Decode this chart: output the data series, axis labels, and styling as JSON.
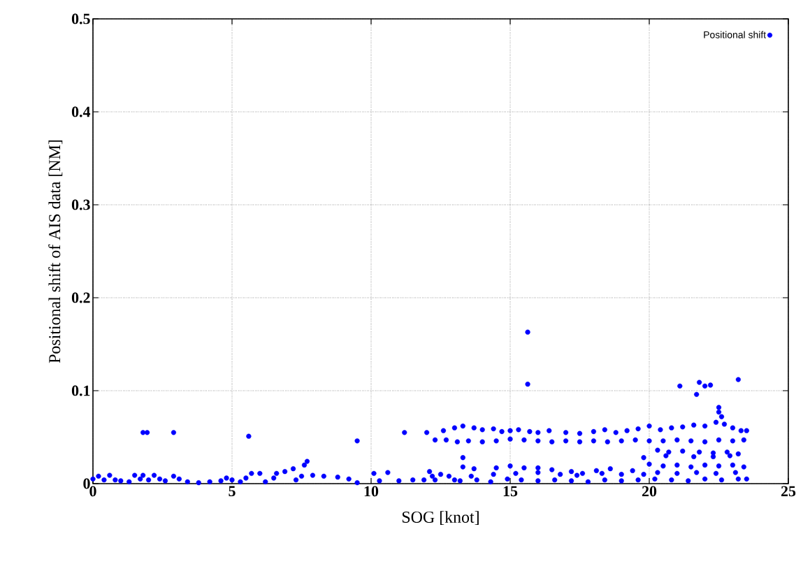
{
  "chart_data": {
    "type": "scatter",
    "xlabel": "SOG [knot]",
    "ylabel": "Positional shift of AIS data [NM]",
    "xlim": [
      0,
      25
    ],
    "ylim": [
      0,
      0.5
    ],
    "xticks": [
      0,
      5,
      10,
      15,
      20,
      25
    ],
    "yticks": [
      0,
      0.1,
      0.2,
      0.3,
      0.4,
      0.5
    ],
    "grid": true,
    "legend": "top right",
    "marker": "circle",
    "series": [
      {
        "name": "Positional shift",
        "color": "#0000ff",
        "x": [
          0.0,
          0.2,
          0.4,
          0.6,
          0.8,
          1.0,
          1.3,
          1.5,
          1.7,
          1.8,
          2.0,
          2.2,
          2.4,
          2.6,
          2.9,
          3.1,
          3.4,
          3.8,
          4.2,
          4.6,
          4.8,
          5.0,
          5.3,
          5.5,
          5.7,
          6.0,
          6.2,
          6.5,
          6.6,
          6.9,
          7.2,
          7.3,
          7.6,
          7.7,
          7.5,
          7.9,
          8.3,
          8.8,
          9.2,
          9.5,
          1.8,
          1.95,
          2.9,
          5.6,
          9.5,
          11.2,
          10.1,
          10.3,
          10.6,
          11.0,
          11.5,
          11.9,
          12.1,
          12.2,
          12.3,
          12.5,
          12.8,
          13.0,
          12.0,
          12.6,
          13.0,
          13.3,
          13.7,
          14.0,
          14.4,
          14.7,
          15.0,
          15.3,
          15.7,
          16.0,
          16.4,
          17.0,
          17.5,
          18.0,
          18.4,
          18.8,
          19.2,
          19.6,
          20.0,
          20.4,
          20.8,
          21.2,
          21.6,
          22.0,
          22.4,
          22.7,
          23.0,
          23.3,
          23.5,
          12.3,
          12.7,
          13.1,
          13.5,
          14.0,
          14.5,
          15.0,
          15.5,
          16.0,
          16.5,
          17.0,
          17.5,
          18.0,
          18.5,
          19.0,
          19.5,
          20.0,
          20.5,
          21.0,
          21.5,
          22.0,
          22.5,
          23.0,
          23.4,
          20.3,
          20.7,
          21.2,
          21.8,
          22.3,
          22.8,
          23.2,
          13.3,
          19.8,
          20.6,
          21.6,
          22.3,
          22.9,
          13.3,
          13.7,
          14.5,
          15.0,
          15.5,
          16.0,
          16.5,
          17.2,
          17.6,
          18.1,
          18.6,
          19.4,
          20.0,
          20.5,
          21.0,
          21.5,
          22.0,
          22.5,
          23.0,
          23.4,
          13.6,
          14.4,
          15.2,
          16.0,
          16.8,
          17.4,
          18.3,
          19.0,
          19.8,
          20.3,
          21.0,
          21.7,
          22.4,
          23.1,
          13.2,
          13.8,
          14.3,
          14.9,
          15.4,
          16.0,
          16.6,
          17.2,
          17.8,
          18.4,
          19.0,
          19.6,
          20.2,
          20.8,
          21.4,
          22.0,
          22.6,
          23.2,
          23.5,
          15.63,
          15.63,
          21.1,
          21.7,
          21.8,
          22.0,
          22.2,
          22.5,
          22.5,
          23.2,
          22.6
        ],
        "values": [
          0.005,
          0.008,
          0.004,
          0.009,
          0.004,
          0.003,
          0.002,
          0.009,
          0.005,
          0.009,
          0.004,
          0.009,
          0.005,
          0.003,
          0.008,
          0.005,
          0.002,
          0.001,
          0.002,
          0.003,
          0.006,
          0.004,
          0.002,
          0.006,
          0.011,
          0.011,
          0.002,
          0.006,
          0.011,
          0.013,
          0.016,
          0.004,
          0.02,
          0.024,
          0.008,
          0.009,
          0.008,
          0.007,
          0.005,
          0.001,
          0.055,
          0.055,
          0.055,
          0.051,
          0.046,
          0.055,
          0.011,
          0.003,
          0.012,
          0.003,
          0.004,
          0.004,
          0.013,
          0.008,
          0.004,
          0.01,
          0.008,
          0.004,
          0.055,
          0.057,
          0.06,
          0.062,
          0.06,
          0.058,
          0.059,
          0.056,
          0.057,
          0.058,
          0.056,
          0.055,
          0.057,
          0.055,
          0.054,
          0.056,
          0.058,
          0.055,
          0.057,
          0.059,
          0.062,
          0.058,
          0.06,
          0.061,
          0.063,
          0.062,
          0.066,
          0.064,
          0.06,
          0.057,
          0.057,
          0.047,
          0.047,
          0.045,
          0.046,
          0.045,
          0.046,
          0.048,
          0.047,
          0.046,
          0.045,
          0.046,
          0.045,
          0.046,
          0.045,
          0.046,
          0.047,
          0.046,
          0.046,
          0.047,
          0.046,
          0.045,
          0.047,
          0.046,
          0.047,
          0.036,
          0.034,
          0.035,
          0.034,
          0.033,
          0.034,
          0.032,
          0.028,
          0.028,
          0.03,
          0.029,
          0.029,
          0.03,
          0.018,
          0.016,
          0.017,
          0.019,
          0.017,
          0.017,
          0.015,
          0.013,
          0.011,
          0.014,
          0.016,
          0.014,
          0.021,
          0.019,
          0.02,
          0.018,
          0.02,
          0.019,
          0.02,
          0.018,
          0.008,
          0.01,
          0.011,
          0.012,
          0.01,
          0.009,
          0.011,
          0.01,
          0.01,
          0.012,
          0.011,
          0.012,
          0.011,
          0.012,
          0.003,
          0.004,
          0.002,
          0.005,
          0.004,
          0.003,
          0.004,
          0.003,
          0.002,
          0.004,
          0.003,
          0.004,
          0.005,
          0.004,
          0.003,
          0.005,
          0.004,
          0.005,
          0.005,
          0.163,
          0.107,
          0.105,
          0.096,
          0.109,
          0.105,
          0.106,
          0.082,
          0.077,
          0.112,
          0.072
        ]
      }
    ]
  }
}
